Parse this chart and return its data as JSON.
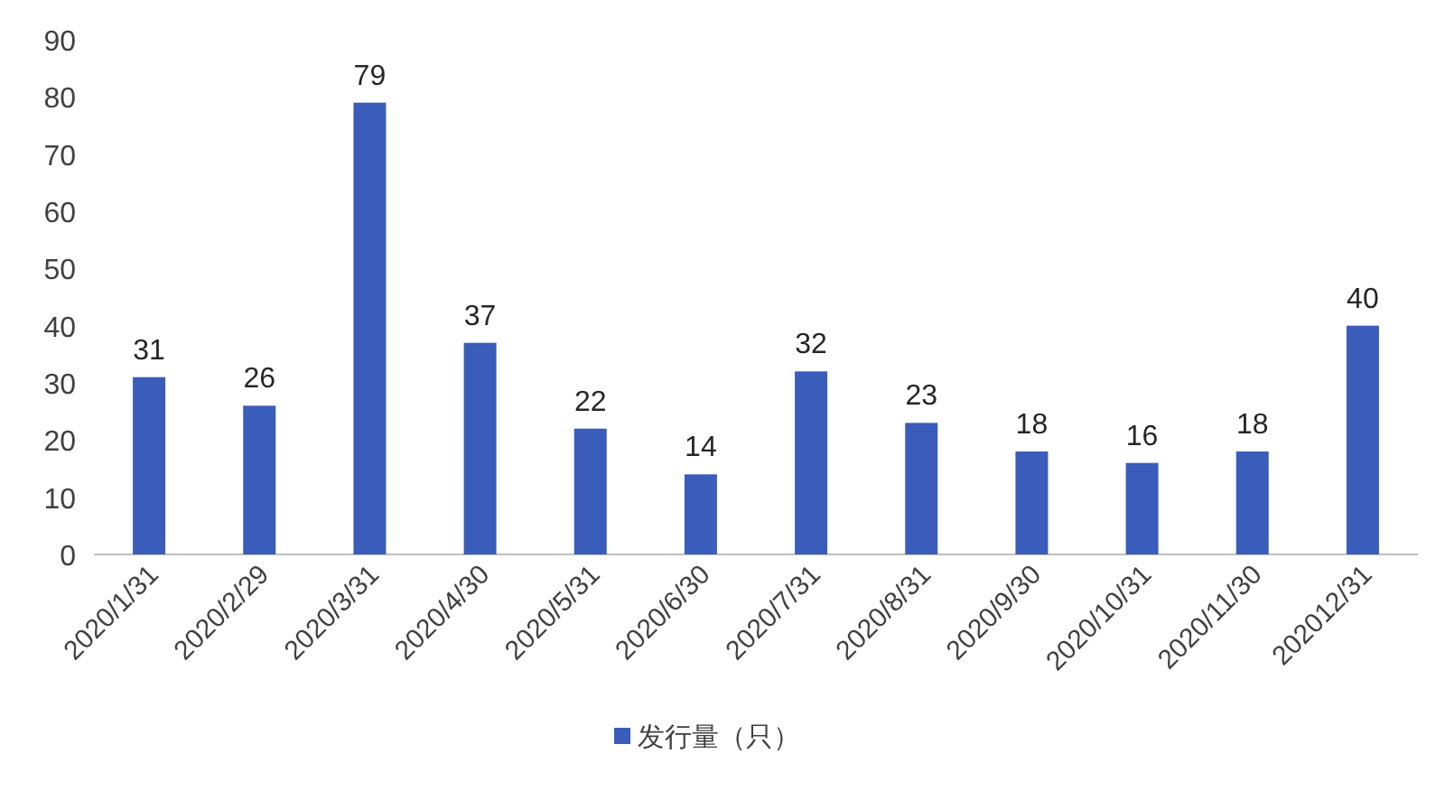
{
  "chart_data": {
    "type": "bar",
    "categories": [
      "2020/1/31",
      "2020/2/29",
      "2020/3/31",
      "2020/4/30",
      "2020/5/31",
      "2020/6/30",
      "2020/7/31",
      "2020/8/31",
      "2020/9/30",
      "2020/10/31",
      "2020/11/30",
      "202012/31"
    ],
    "series": [
      {
        "name": "发行量（只）",
        "color": "#3a5cba",
        "values": [
          31,
          26,
          79,
          37,
          22,
          14,
          32,
          23,
          18,
          16,
          18,
          40
        ]
      }
    ],
    "ylim": [
      0,
      90
    ],
    "yticks": [
      0,
      10,
      20,
      30,
      40,
      50,
      60,
      70,
      80,
      90
    ],
    "grid": false,
    "legend": "bottom",
    "data_labels": true
  }
}
